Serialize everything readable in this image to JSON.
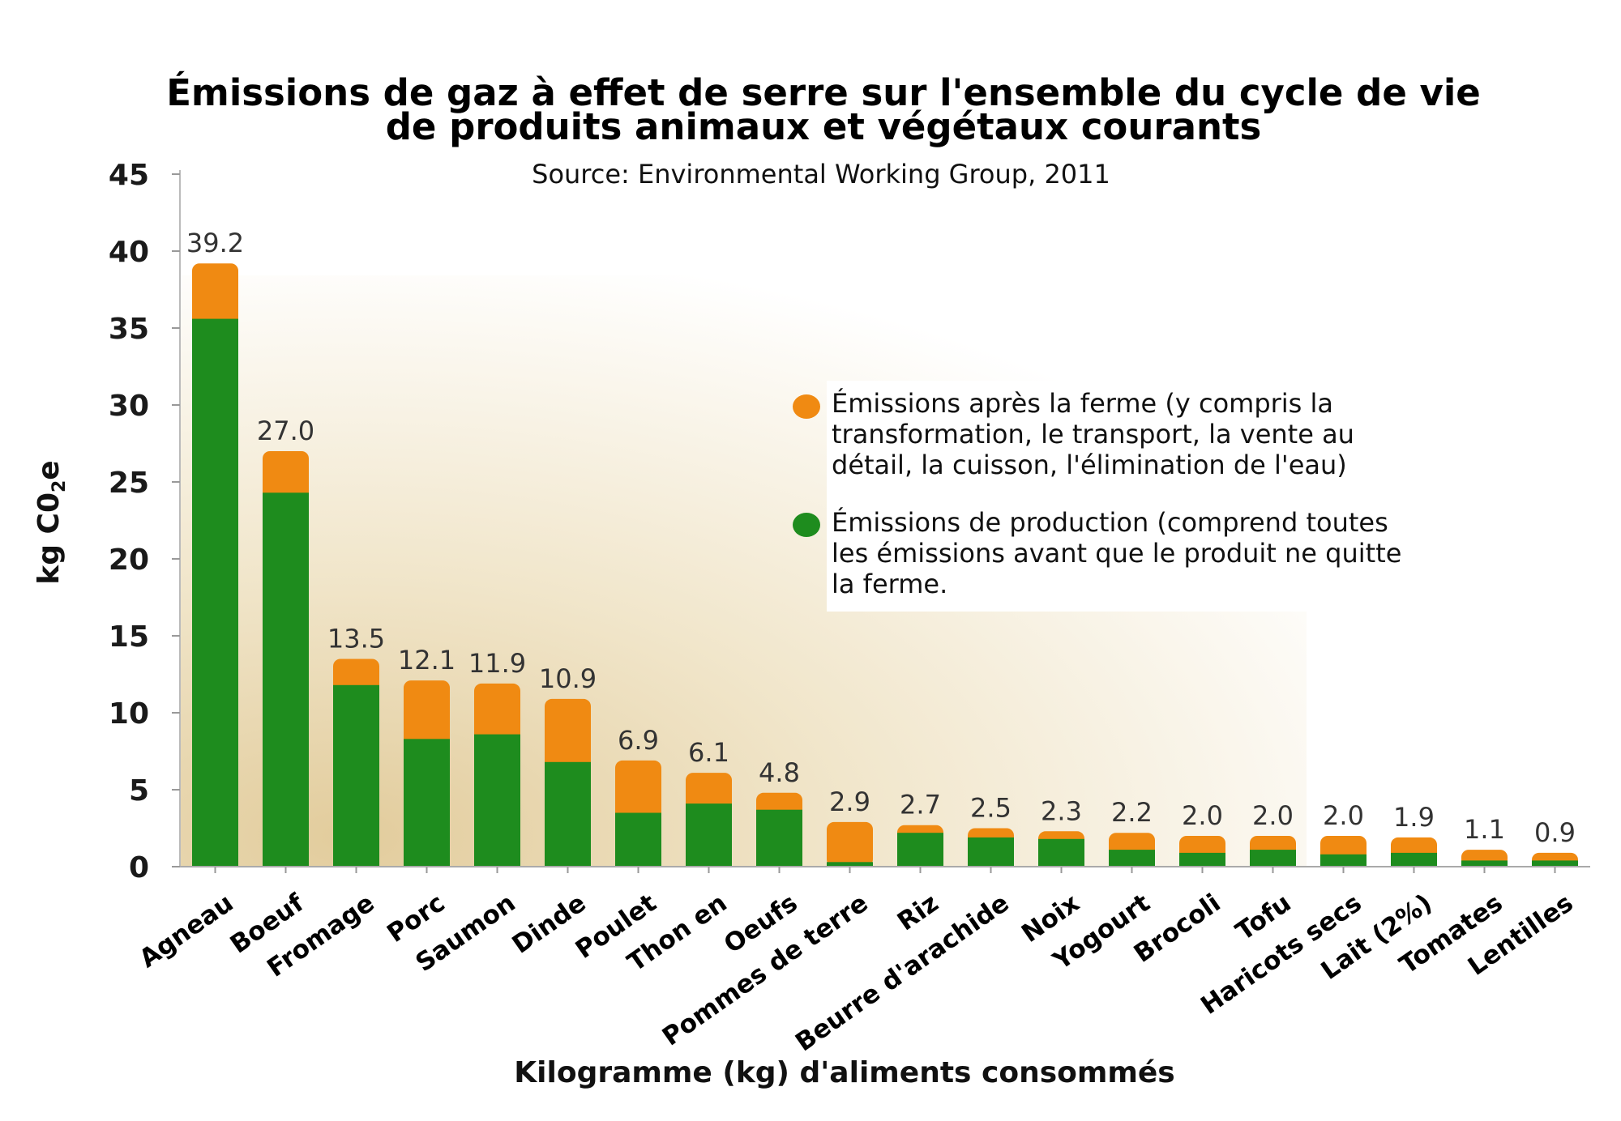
{
  "chart_data": {
    "type": "bar",
    "stacked": true,
    "title_line1": "Émissions de gaz à effet de serre sur l'ensemble du cycle de vie",
    "title_line2": "de produits animaux et végétaux courants",
    "subtitle": "Source: Environmental Working Group, 2011",
    "xlabel": "Kilogramme (kg) d'aliments consommés",
    "ylabel_main": "kg C0",
    "ylabel_sub": "2",
    "ylabel_tail": "e",
    "ylim": [
      0,
      45
    ],
    "yticks": [
      0,
      5,
      10,
      15,
      20,
      25,
      30,
      35,
      40,
      45
    ],
    "grid": false,
    "legend_position": "center-right",
    "categories": [
      "Agneau",
      "Boeuf",
      "Fromage",
      "Porc",
      "Saumon",
      "Dinde",
      "Poulet",
      "Thon en",
      "Oeufs",
      "Pommes de terre",
      "Riz",
      "Beurre d'arachide",
      "Noix",
      "Yogourt",
      "Brocoli",
      "Tofu",
      "Haricots secs",
      "Lait (2%)",
      "Tomates",
      "Lentilles"
    ],
    "totals": [
      39.2,
      27.0,
      13.5,
      12.1,
      11.9,
      10.9,
      6.9,
      6.1,
      4.8,
      2.9,
      2.7,
      2.5,
      2.3,
      2.2,
      2.0,
      2.0,
      2.0,
      1.9,
      1.1,
      0.9
    ],
    "total_labels": [
      "39.2",
      "27.0",
      "13.5",
      "12.1",
      "11.9",
      "10.9",
      "6.9",
      "6.1",
      "4.8",
      "2.9",
      "2.7",
      "2.5",
      "2.3",
      "2.2",
      "2.0",
      "2.0",
      "2.0",
      "1.9",
      "1.1",
      "0.9"
    ],
    "series": [
      {
        "name": "Émissions de production (comprend toutes les émissions avant que le produit ne quitte la ferme.",
        "color": "#1e8c1e",
        "values": [
          35.6,
          24.3,
          11.8,
          8.3,
          8.6,
          6.8,
          3.5,
          4.1,
          3.7,
          0.3,
          2.2,
          1.9,
          1.8,
          1.1,
          0.9,
          1.1,
          0.8,
          0.9,
          0.4,
          0.4
        ]
      },
      {
        "name": "Émissions après la ferme (y compris la transformation, le transport, la vente au détail, la cuisson, l'élimination de l'eau)",
        "color": "#f08a12",
        "values": [
          3.6,
          2.7,
          1.7,
          3.8,
          3.3,
          4.1,
          3.4,
          2.0,
          1.1,
          2.6,
          0.5,
          0.6,
          0.5,
          1.1,
          1.1,
          0.9,
          1.2,
          1.0,
          0.7,
          0.5
        ]
      }
    ]
  },
  "legend": {
    "after_farm": {
      "color": "#f08a12",
      "lines": [
        "Émissions après la ferme (y compris la",
        "transformation, le transport, la vente au",
        "détail, la cuisson, l'élimination de l'eau)"
      ]
    },
    "production": {
      "color": "#1e8c1e",
      "lines": [
        "Émissions de production (comprend toutes",
        "les émissions avant que le produit ne quitte",
        "la ferme."
      ]
    }
  }
}
